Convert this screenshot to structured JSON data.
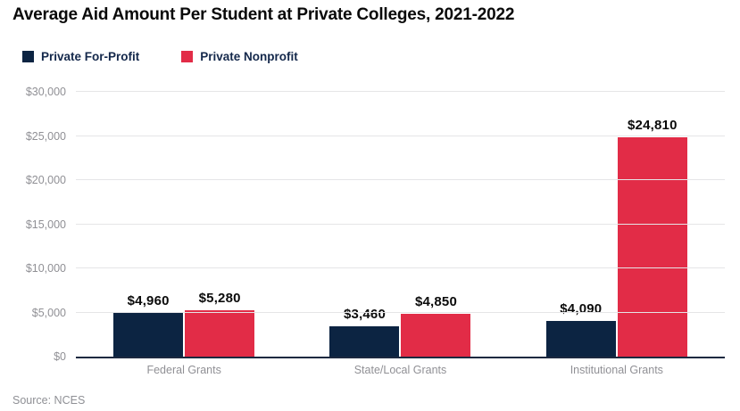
{
  "title": "Average Aid Amount Per Student at Private Colleges, 2021-2022",
  "source": "Source: NCES",
  "legend": [
    {
      "label": "Private For-Profit",
      "color": "#0c2442"
    },
    {
      "label": "Private Nonprofit",
      "color": "#e22c47"
    }
  ],
  "colors": {
    "for_profit": "#0c2442",
    "nonprofit": "#e22c47",
    "axis_line": "#1c2940",
    "gridline": "#e5e5e7",
    "tick_text": "#909095",
    "title_text": "#0a0a0a"
  },
  "chart_data": {
    "type": "bar",
    "title": "Average Aid Amount Per Student at Private Colleges, 2021-2022",
    "categories": [
      "Federal Grants",
      "State/Local Grants",
      "Institutional Grants"
    ],
    "series": [
      {
        "name": "Private For-Profit",
        "color": "#0c2442",
        "values": [
          4960,
          3460,
          4090
        ],
        "labels": [
          "$4,960",
          "$3,460",
          "$4,090"
        ]
      },
      {
        "name": "Private Nonprofit",
        "color": "#e22c47",
        "values": [
          5280,
          4850,
          24810
        ],
        "labels": [
          "$5,280",
          "$4,850",
          "$24,810"
        ]
      }
    ],
    "xlabel": "",
    "ylabel": "",
    "ylim": [
      0,
      30000
    ],
    "ytick_step": 5000,
    "ytick_labels": [
      "$0",
      "$5,000",
      "$10,000",
      "$15,000",
      "$20,000",
      "$25,000",
      "$30,000"
    ],
    "grid": true,
    "legend_position": "top-left",
    "source": "Source: NCES"
  }
}
